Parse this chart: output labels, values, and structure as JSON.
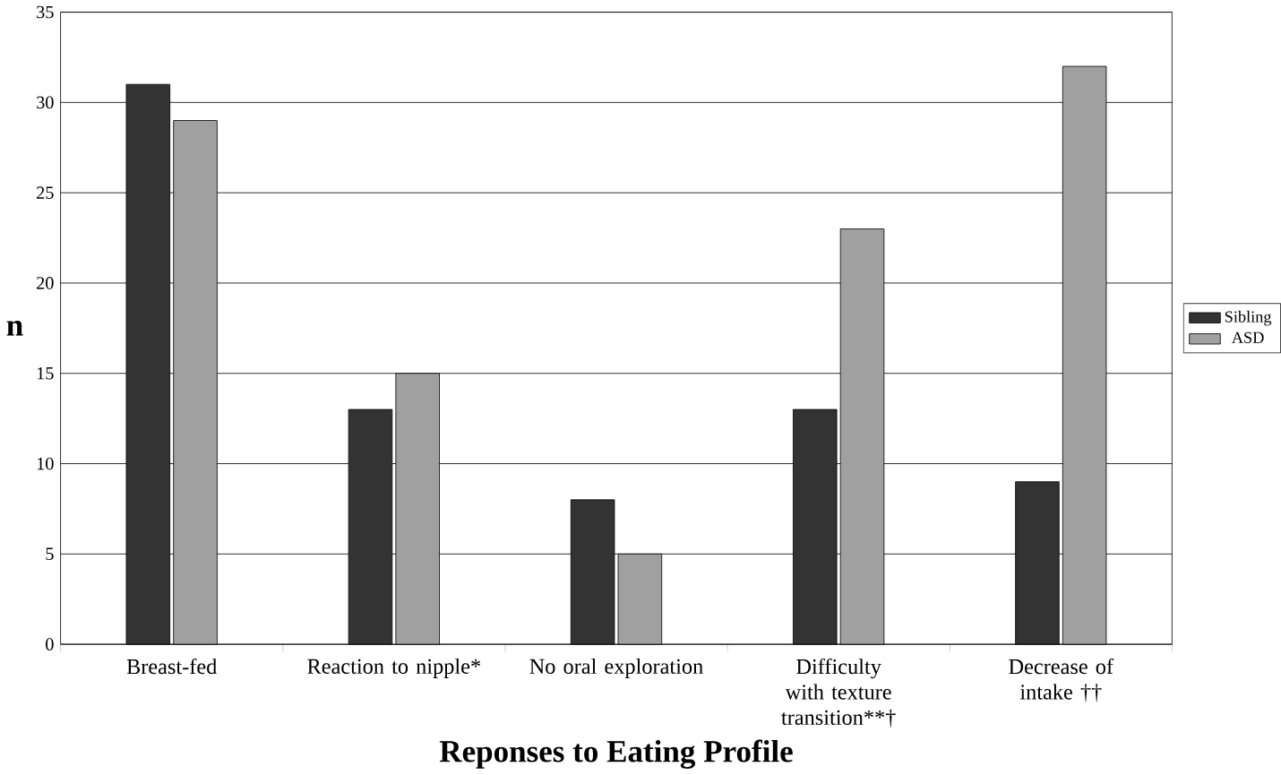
{
  "chart_data": {
    "type": "bar",
    "xlabel": "Reponses to Eating Profile",
    "ylabel": "n",
    "categories": [
      "Breast-fed",
      "Reaction to nipple*",
      "No oral exploration",
      "Difficulty with texture transition**†",
      "Decrease of intake ††"
    ],
    "series": [
      {
        "name": "Sibling",
        "color": "#333333",
        "values": [
          31,
          13,
          8,
          13,
          9
        ]
      },
      {
        "name": "ASD",
        "color": "#a0a0a0",
        "values": [
          29,
          15,
          5,
          23,
          32
        ]
      }
    ],
    "ylim": [
      0,
      35
    ],
    "yticks": [
      0,
      5,
      10,
      15,
      20,
      25,
      30,
      35
    ],
    "grid": "y",
    "legend": "right"
  }
}
